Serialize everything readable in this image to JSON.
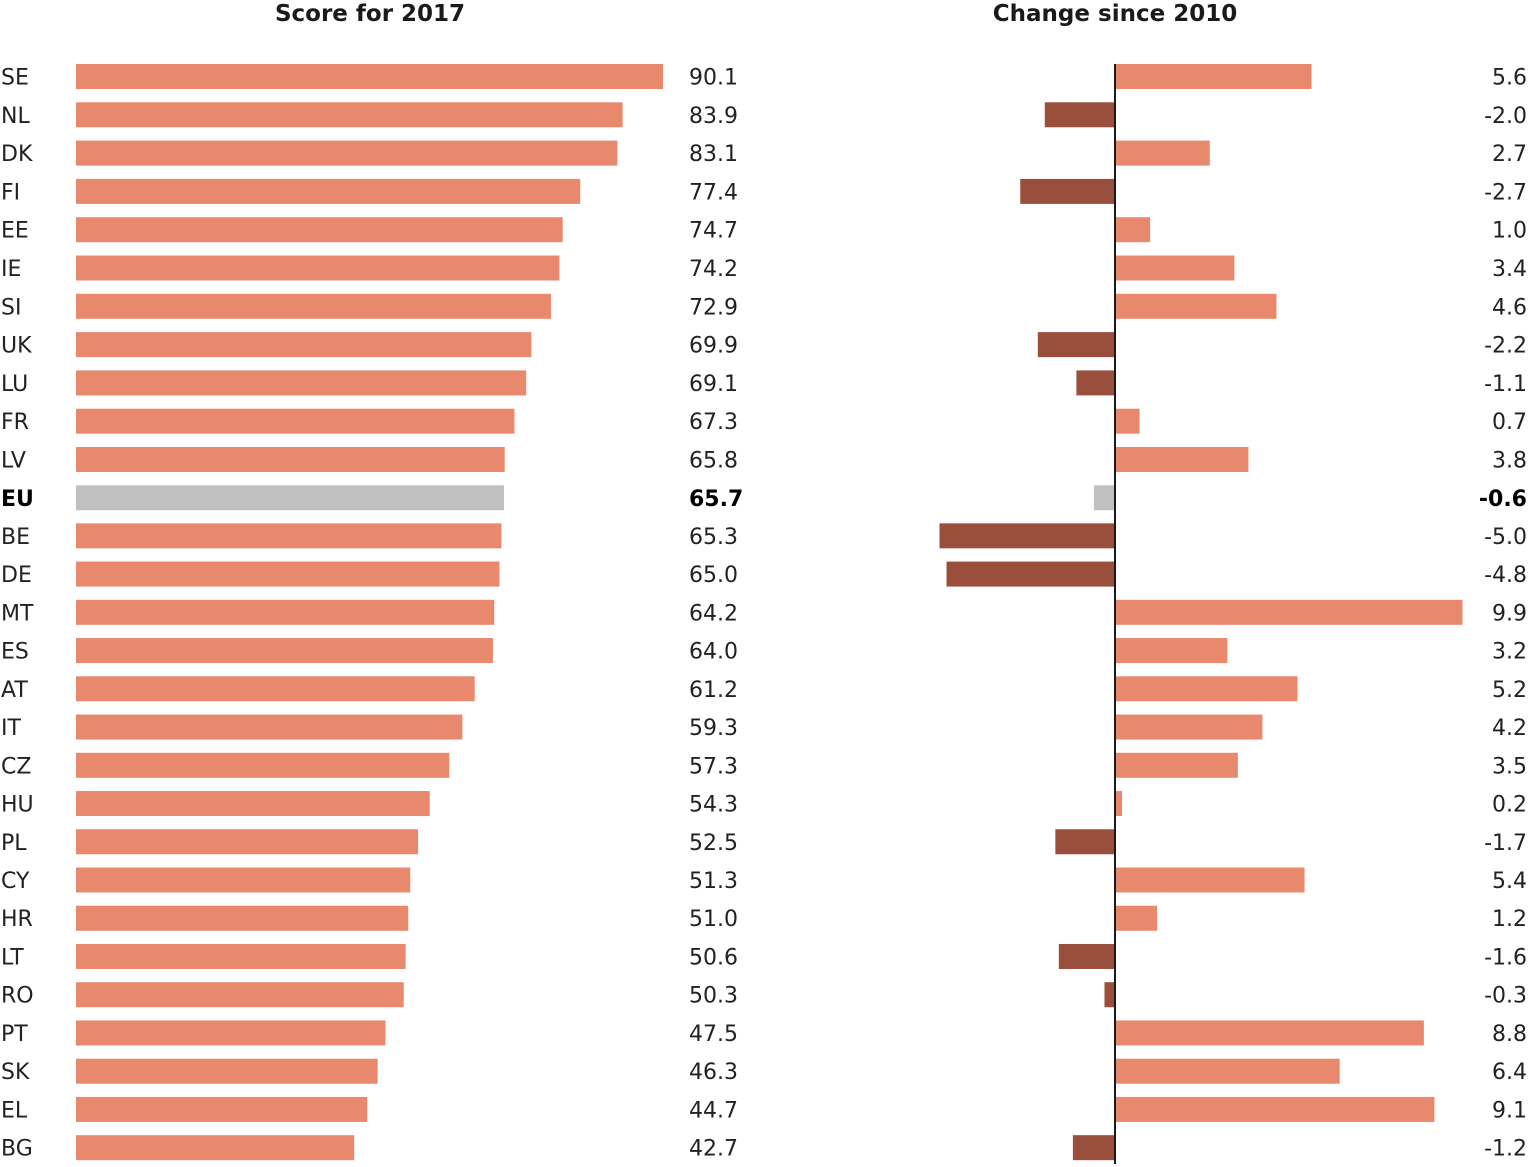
{
  "chart_data": {
    "type": "bar",
    "orientation": "horizontal",
    "categories": [
      "SE",
      "NL",
      "DK",
      "FI",
      "EE",
      "IE",
      "SI",
      "UK",
      "LU",
      "FR",
      "LV",
      "EU",
      "BE",
      "DE",
      "MT",
      "ES",
      "AT",
      "IT",
      "CZ",
      "HU",
      "PL",
      "CY",
      "HR",
      "LT",
      "RO",
      "PT",
      "SK",
      "EL",
      "BG"
    ],
    "highlight_category": "EU",
    "series": [
      {
        "title": "Score for 2017",
        "values": [
          90.1,
          83.9,
          83.1,
          77.4,
          74.7,
          74.2,
          72.9,
          69.9,
          69.1,
          67.3,
          65.8,
          65.7,
          65.3,
          65.0,
          64.2,
          64.0,
          61.2,
          59.3,
          57.3,
          54.3,
          52.5,
          51.3,
          51.0,
          50.6,
          50.3,
          47.5,
          46.3,
          44.7,
          42.7
        ],
        "labels": [
          "90.1",
          "83.9",
          "83.1",
          "77.4",
          "74.7",
          "74.2",
          "72.9",
          "69.9",
          "69.1",
          "67.3",
          "65.8",
          "65.7",
          "65.3",
          "65.0",
          "64.2",
          "64.0",
          "61.2",
          "59.3",
          "57.3",
          "54.3",
          "52.5",
          "51.3",
          "51.0",
          "50.6",
          "50.3",
          "47.5",
          "46.3",
          "44.7",
          "42.7"
        ],
        "xlim": [
          0,
          90.1
        ]
      },
      {
        "title": "Change since 2010",
        "values": [
          5.6,
          -2.0,
          2.7,
          -2.7,
          1.0,
          3.4,
          4.6,
          -2.2,
          -1.1,
          0.7,
          3.8,
          -0.6,
          -5.0,
          -4.8,
          9.9,
          3.2,
          5.2,
          4.2,
          3.5,
          0.2,
          -1.7,
          5.4,
          1.2,
          -1.6,
          -0.3,
          8.8,
          6.4,
          9.1,
          -1.2
        ],
        "labels": [
          "5.6",
          "-2.0",
          "2.7",
          "-2.7",
          "1.0",
          "3.4",
          "4.6",
          "-2.2",
          "-1.1",
          "0.7",
          "3.8",
          "-0.6",
          "-5.0",
          "-4.8",
          "9.9",
          "3.2",
          "5.2",
          "4.2",
          "3.5",
          "0.2",
          "-1.7",
          "5.4",
          "1.2",
          "-1.6",
          "-0.3",
          "8.8",
          "6.4",
          "9.1",
          "-1.2"
        ],
        "xlim": [
          -5.0,
          9.9
        ]
      }
    ],
    "colors": {
      "score_bar": "#e8886c",
      "positive_change": "#e8886c",
      "negative_change": "#9a4e3c",
      "eu_bar": "#c0c0c0",
      "axis": "#1a1a1a"
    }
  }
}
